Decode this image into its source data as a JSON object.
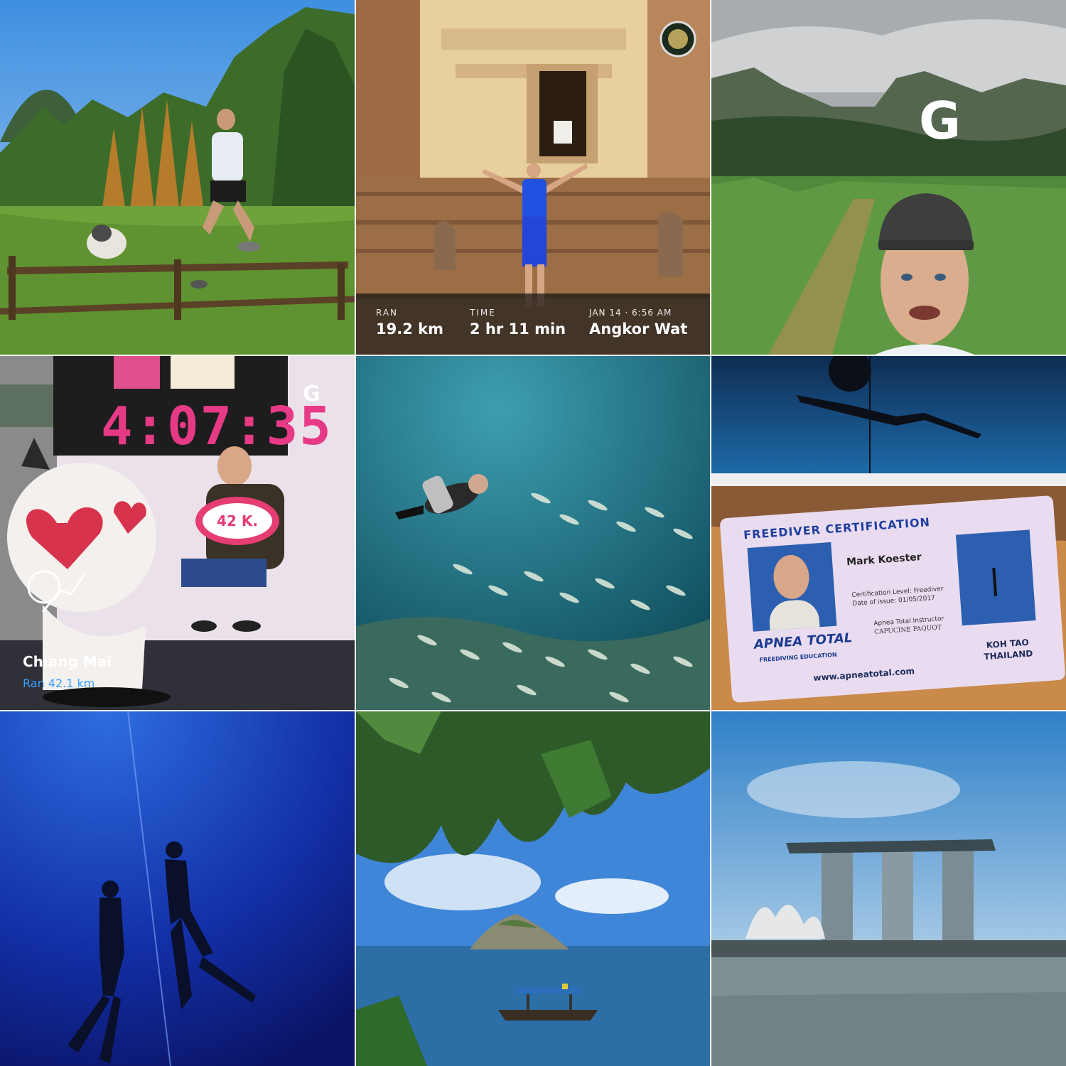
{
  "collage": {
    "tiles": [
      {
        "id": "tile-1",
        "subject": "runner jumping fence with husky"
      },
      {
        "id": "tile-2",
        "subject": "runner at temple"
      },
      {
        "id": "tile-3",
        "subject": "mountain trail selfie"
      },
      {
        "id": "tile-4",
        "subject": "marathon finish photo"
      },
      {
        "id": "tile-5",
        "subject": "scuba diver with fish school"
      },
      {
        "id": "tile-6",
        "subject": "freediving and certification card"
      },
      {
        "id": "tile-7",
        "subject": "freedivers in deep blue"
      },
      {
        "id": "tile-8",
        "subject": "island bay with boat"
      },
      {
        "id": "tile-9",
        "subject": "city skyline by water"
      }
    ]
  },
  "run_overlay": {
    "ran_label": "RAN",
    "ran_value": "19.2 km",
    "time_label": "TIME",
    "time_value": "2 hr 11 min",
    "date_label": "JAN 14 · 6:56 AM",
    "place": "Angkor Wat"
  },
  "logo_letter": "G",
  "marathon": {
    "clock": "4:07:35",
    "sign": "42 K.",
    "place": "Chiang Mai",
    "ran": "Ran 42.1 km"
  },
  "card": {
    "title": "FREEDIVER CERTIFICATION",
    "name": "Mark Koester",
    "level": "Certification Level: Freediver",
    "date": "Date of issue: 01/05/2017",
    "instructor_role": "Apnea Total Instructor",
    "instructor": "CAPUCINE PAQUOT",
    "logo": "APNEA TOTAL",
    "edu": "FREEDIVING EDUCATION",
    "web": "www.apneatotal.com",
    "location_1": "KOH TAO",
    "location_2": "THAILAND"
  },
  "colors": {
    "accent_blue": "#39a0ff",
    "clock_pink": "#e73a86",
    "card_blue": "#1d3f9e"
  }
}
